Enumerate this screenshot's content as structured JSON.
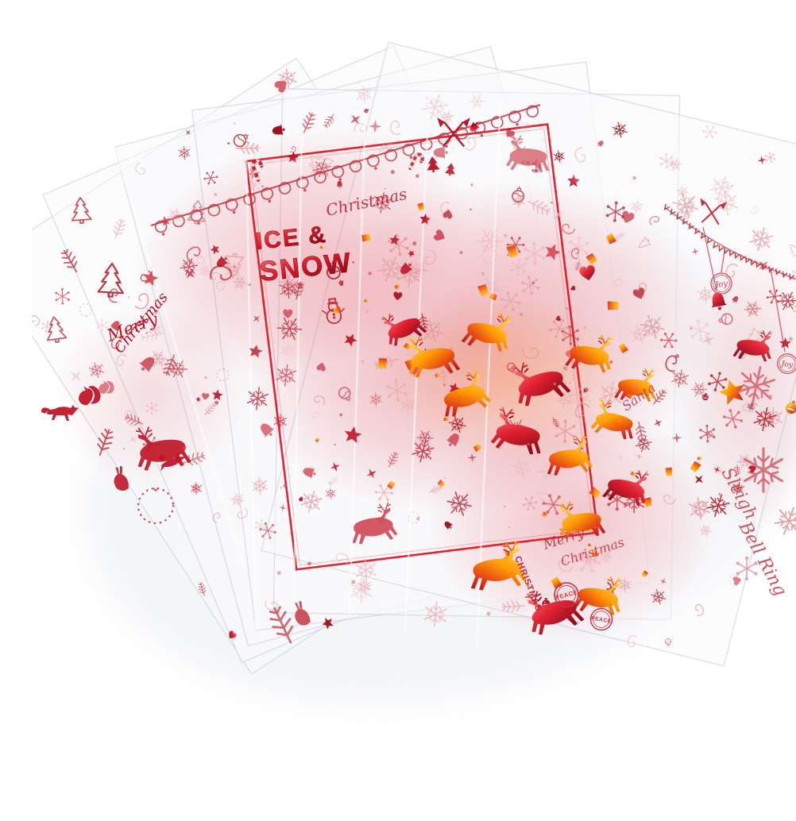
{
  "photo": {
    "background_color": "#ffffff",
    "colors": {
      "foil_red": "#c01828",
      "foil_red_bright": "#e8323c",
      "foil_red_deep": "#8c0616",
      "foil_pink": "#e49099",
      "foil_gold": "#ffb200",
      "foil_orange": "#ff7a00",
      "sheet_edge": "#ccd2dc"
    },
    "texts": {
      "ice": "ICE &",
      "snow": "SNOW",
      "merry": "Merry",
      "christmas_script": "Christmas",
      "christmas_caps": "CHRISTMAS",
      "santa": "Santa",
      "sleigh": "Sleigh",
      "bell_ring": "Bell Ring",
      "peace": "PEACE",
      "joy": "Joy"
    },
    "motifs": [
      "snowflake",
      "reindeer",
      "jingle-bell",
      "bell",
      "star",
      "garland-swag",
      "lace-border",
      "squirrel",
      "fox",
      "rabbit",
      "bird",
      "wreath",
      "fir-tree",
      "candy-cane",
      "snowman",
      "holly-branch",
      "crossed-axes",
      "bauble-ornament",
      "heart",
      "peace-stamp"
    ]
  }
}
